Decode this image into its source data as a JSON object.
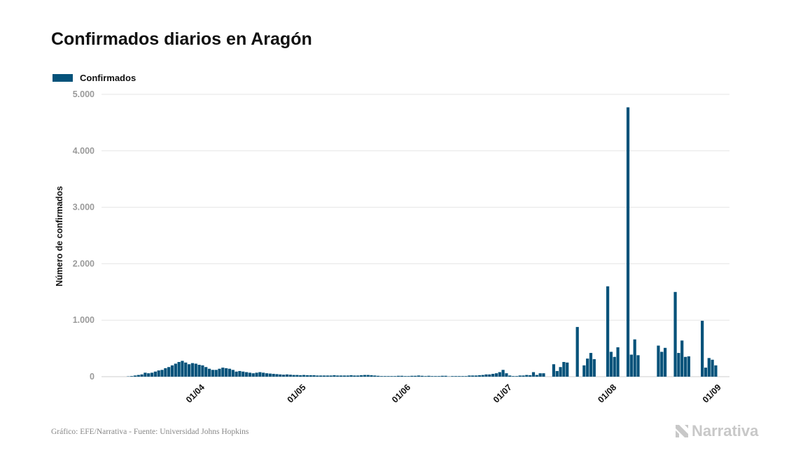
{
  "header": {
    "title": "Confirmados diarios en Aragón"
  },
  "legend": {
    "label": "Confirmados"
  },
  "footer": {
    "source": "Gráfico: EFE/Narrativa - Fuente: Universidad Johns Hopkins",
    "brand": "Narrativa"
  },
  "colors": {
    "bar": "#05527a",
    "grid": "#e6e6e6",
    "tick_text": "#9a9a9a"
  },
  "chart_data": {
    "type": "bar",
    "title": "Confirmados diarios en Aragón",
    "ylabel": "Número de confirmados",
    "xlabel": "",
    "ylim": [
      0,
      5000
    ],
    "y_ticks": [
      0,
      1000,
      2000,
      3000,
      4000,
      5000
    ],
    "y_tick_labels": [
      "0",
      "1.000",
      "2.000",
      "3.000",
      "4.000",
      "5.000"
    ],
    "x_range": [
      "2020-03-03",
      "2020-09-05"
    ],
    "x_ticks": [
      "2020-04-01",
      "2020-05-01",
      "2020-06-01",
      "2020-07-01",
      "2020-08-01",
      "2020-09-01"
    ],
    "x_tick_labels": [
      "01/04",
      "01/05",
      "01/06",
      "01/07",
      "01/08",
      "01/09"
    ],
    "grid": true,
    "legend_position": "top-left",
    "series": [
      {
        "name": "Confirmados",
        "start_date": "2020-03-11",
        "values": [
          5,
          10,
          20,
          30,
          40,
          70,
          60,
          70,
          90,
          110,
          120,
          150,
          170,
          200,
          230,
          260,
          280,
          250,
          220,
          240,
          230,
          210,
          200,
          170,
          140,
          120,
          120,
          140,
          160,
          150,
          140,
          120,
          90,
          100,
          90,
          80,
          70,
          60,
          70,
          80,
          70,
          60,
          55,
          50,
          45,
          40,
          35,
          40,
          35,
          30,
          30,
          25,
          30,
          25,
          25,
          25,
          20,
          20,
          20,
          20,
          20,
          25,
          20,
          20,
          20,
          20,
          25,
          20,
          20,
          25,
          30,
          30,
          25,
          20,
          15,
          10,
          10,
          10,
          10,
          10,
          15,
          15,
          10,
          10,
          15,
          15,
          20,
          15,
          10,
          15,
          10,
          10,
          10,
          15,
          15,
          5,
          10,
          10,
          10,
          10,
          10,
          20,
          20,
          20,
          25,
          30,
          40,
          40,
          50,
          60,
          80,
          120,
          60,
          20,
          10,
          10,
          20,
          20,
          30,
          25,
          80,
          30,
          60,
          60,
          0,
          0,
          220,
          100,
          170,
          260,
          250,
          0,
          0,
          880,
          0,
          200,
          320,
          420,
          310,
          0,
          0,
          0,
          1600,
          440,
          350,
          520,
          0,
          0,
          4770,
          390,
          660,
          380,
          0,
          0,
          0,
          0,
          0,
          550,
          440,
          510,
          0,
          0,
          1500,
          420,
          640,
          350,
          360,
          0,
          0,
          0,
          990,
          160,
          330,
          300,
          200
        ]
      }
    ]
  }
}
